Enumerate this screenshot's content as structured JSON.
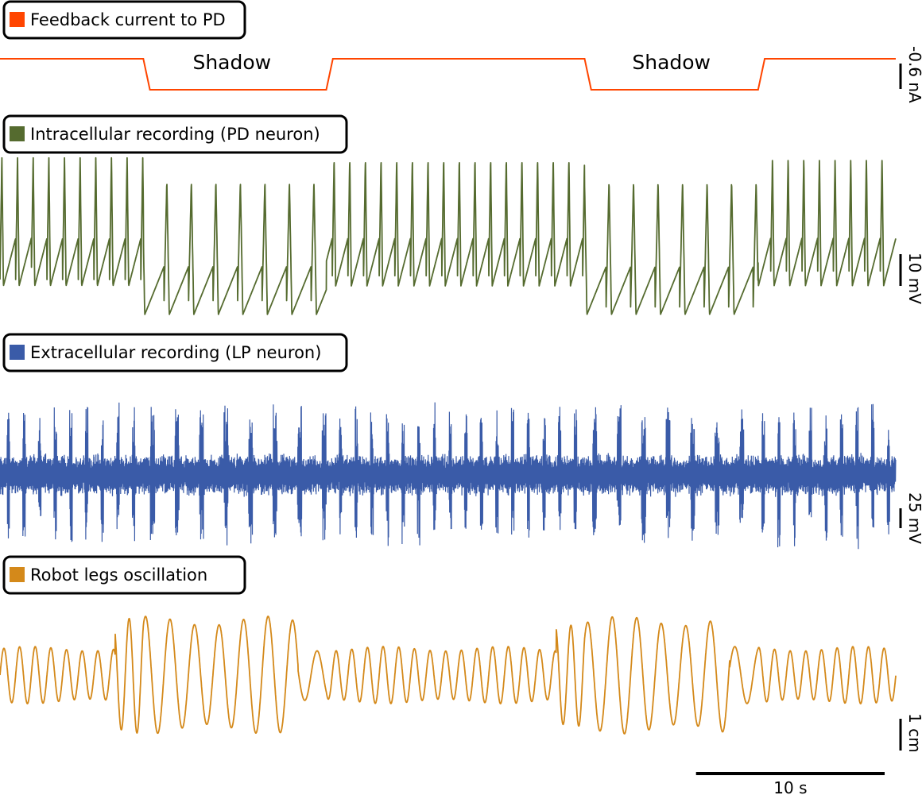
{
  "chart_data": {
    "type": "line",
    "x_unit": "s",
    "x_range": [
      0,
      47.5
    ],
    "shadow_intervals": [
      [
        7.6,
        17.3
      ],
      [
        31.0,
        40.2
      ]
    ],
    "panels": [
      {
        "id": "current",
        "legend": "Feedback current to PD",
        "color": "#ff4500",
        "kind": "step",
        "baseline_nA": 0.0,
        "shadow_level_nA": -0.6,
        "annotations": [
          {
            "text": "Shadow",
            "x": 12.3
          },
          {
            "text": "Shadow",
            "x": 35.6
          }
        ],
        "scale_bar": {
          "label": "-0.6 nA",
          "value": 0.6
        }
      },
      {
        "id": "pd",
        "legend": "Intracellular recording (PD neuron)",
        "color": "#556b2f",
        "kind": "bursting",
        "normal_period_s": 0.83,
        "shadow_period_s": 1.3,
        "scale_bar": {
          "label": "10 mV",
          "value": 10
        }
      },
      {
        "id": "lp",
        "legend": "Extracellular recording (LP neuron)",
        "color": "#3a5ba8",
        "kind": "spikes",
        "normal_period_s": 0.83,
        "shadow_period_s": 1.3,
        "scale_bar": {
          "label": "25 mV",
          "value": 25
        }
      },
      {
        "id": "robot",
        "legend": "Robot legs oscillation",
        "color": "#d4891a",
        "kind": "oscillation",
        "normal_period_s": 0.83,
        "shadow_period_s": 1.3,
        "normal_amplitude_cm": 0.9,
        "shadow_amplitude_cm": 1.85,
        "scale_bar": {
          "label": "1 cm",
          "value": 1
        }
      }
    ],
    "time_scale_bar": {
      "label": "10 s",
      "value": 10
    }
  }
}
